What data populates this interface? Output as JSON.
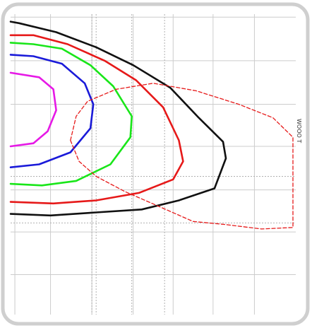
{
  "chart_data": {
    "type": "line",
    "title": "",
    "xlabel": "",
    "ylabel": "",
    "grid": true,
    "xlim": [
      0,
      10
    ],
    "ylim": [
      0,
      10
    ],
    "side_label": "WOOO T",
    "grid_x": [
      0.15,
      1.4,
      2.85,
      4.3,
      5.7,
      7.1,
      8.55
    ],
    "grid_y": [
      1.33,
      2.75,
      4.15,
      5.6,
      7.0,
      8.45,
      9.9
    ],
    "dotted_x": [
      2.85,
      3.0,
      4.25,
      5.4
    ],
    "dotted_y": [
      4.6,
      3.05
    ],
    "series": [
      {
        "color": "#e619e6",
        "dashed": false,
        "points": [
          [
            0,
            5.6
          ],
          [
            0.8,
            5.7
          ],
          [
            1.3,
            6.1
          ],
          [
            1.6,
            6.8
          ],
          [
            1.5,
            7.5
          ],
          [
            1.0,
            7.9
          ],
          [
            0,
            8.05
          ]
        ]
      },
      {
        "color": "#1a1ad9",
        "dashed": false,
        "points": [
          [
            0,
            4.9
          ],
          [
            1.0,
            5.0
          ],
          [
            2.1,
            5.4
          ],
          [
            2.8,
            6.2
          ],
          [
            2.9,
            7.0
          ],
          [
            2.6,
            7.7
          ],
          [
            1.8,
            8.35
          ],
          [
            0.8,
            8.6
          ],
          [
            0,
            8.65
          ]
        ]
      },
      {
        "color": "#19e619",
        "dashed": false,
        "points": [
          [
            0,
            4.35
          ],
          [
            1.1,
            4.3
          ],
          [
            2.3,
            4.45
          ],
          [
            3.5,
            5.0
          ],
          [
            4.2,
            5.9
          ],
          [
            4.25,
            6.6
          ],
          [
            3.6,
            7.6
          ],
          [
            2.8,
            8.3
          ],
          [
            1.8,
            8.85
          ],
          [
            0.8,
            9.0
          ],
          [
            0,
            9.05
          ]
        ]
      },
      {
        "color": "#e61919",
        "dashed": false,
        "points": [
          [
            0,
            3.75
          ],
          [
            1.5,
            3.7
          ],
          [
            3.0,
            3.8
          ],
          [
            4.5,
            4.05
          ],
          [
            5.7,
            4.5
          ],
          [
            6.05,
            5.1
          ],
          [
            5.9,
            5.8
          ],
          [
            5.35,
            6.9
          ],
          [
            4.4,
            7.8
          ],
          [
            3.3,
            8.45
          ],
          [
            2.0,
            9.0
          ],
          [
            0.8,
            9.3
          ],
          [
            0,
            9.3
          ]
        ]
      },
      {
        "color": "#111111",
        "dashed": false,
        "points": [
          [
            0,
            3.35
          ],
          [
            1.4,
            3.3
          ],
          [
            3.0,
            3.4
          ],
          [
            4.6,
            3.5
          ],
          [
            5.9,
            3.8
          ],
          [
            7.15,
            4.2
          ],
          [
            7.55,
            5.2
          ],
          [
            7.45,
            5.75
          ],
          [
            6.6,
            6.55
          ],
          [
            5.6,
            7.55
          ],
          [
            4.3,
            8.3
          ],
          [
            3.0,
            8.9
          ],
          [
            1.6,
            9.4
          ],
          [
            0.3,
            9.7
          ],
          [
            0,
            9.75
          ]
        ]
      },
      {
        "color": "#e61919",
        "dashed": true,
        "points": [
          [
            2.1,
            5.8
          ],
          [
            2.3,
            6.6
          ],
          [
            2.7,
            7.1
          ],
          [
            3.7,
            7.5
          ],
          [
            5.0,
            7.7
          ],
          [
            6.5,
            7.45
          ],
          [
            8.0,
            7.0
          ],
          [
            9.2,
            6.55
          ],
          [
            9.9,
            5.9
          ],
          [
            9.9,
            2.9
          ],
          [
            8.8,
            2.85
          ],
          [
            7.5,
            3.0
          ],
          [
            6.4,
            3.1
          ],
          [
            5.2,
            3.6
          ],
          [
            4.0,
            4.1
          ],
          [
            3.0,
            4.6
          ],
          [
            2.4,
            5.1
          ],
          [
            2.1,
            5.8
          ]
        ]
      }
    ]
  }
}
